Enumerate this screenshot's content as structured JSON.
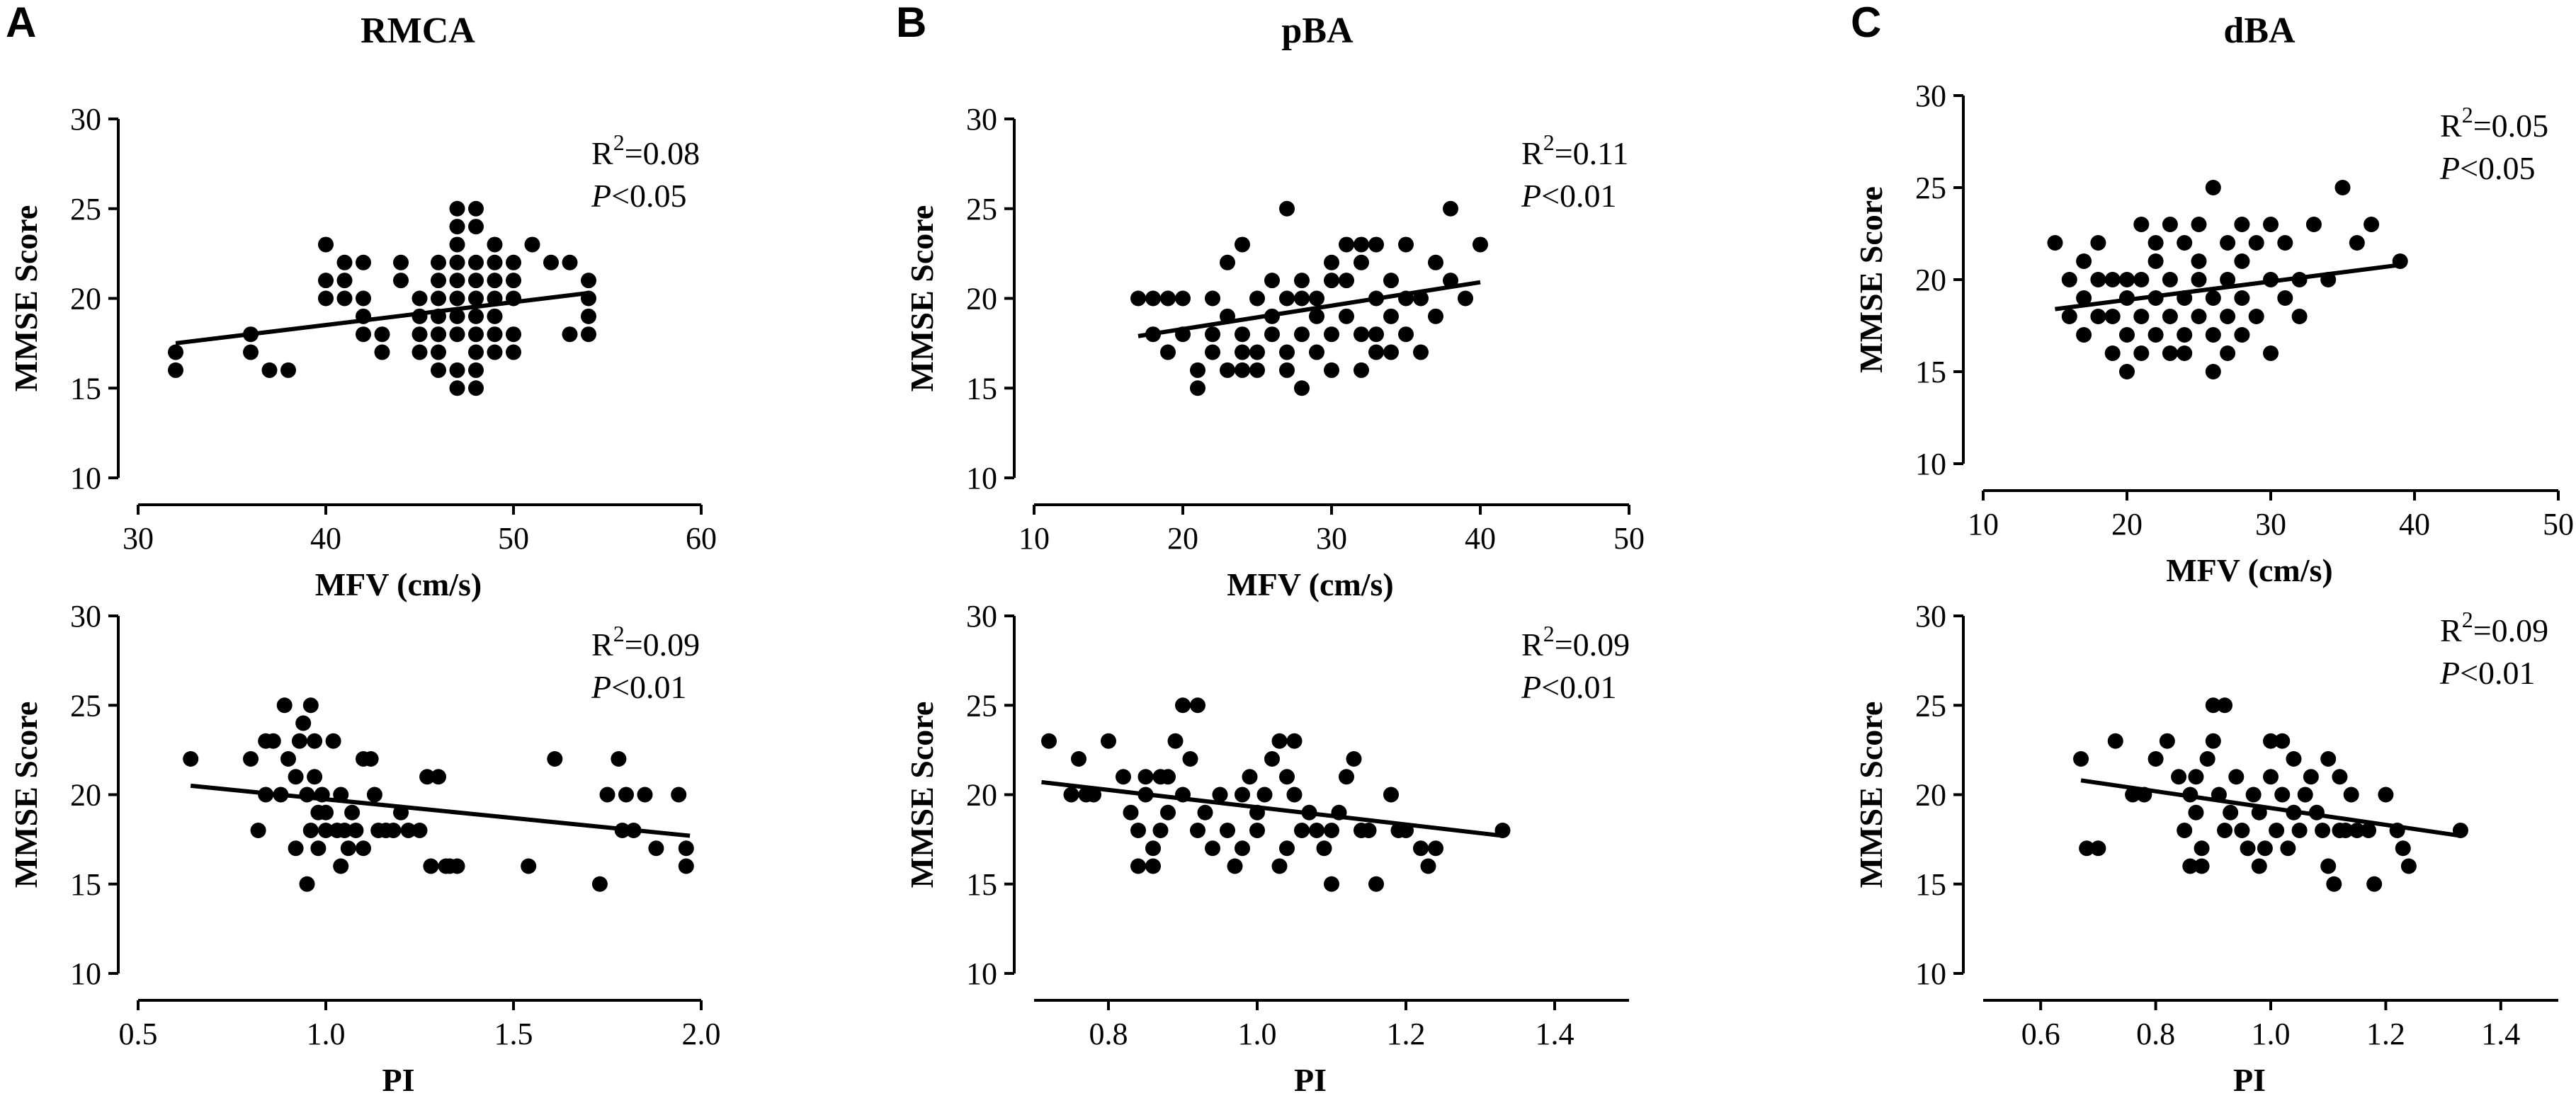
{
  "chart_data": [
    {
      "id": "A-MFV",
      "type": "scatter",
      "panel_letter": "A",
      "title": "RMCA",
      "xlabel": "MFV (cm/s)",
      "ylabel": "MMSE Score",
      "xlim": [
        30,
        60
      ],
      "ylim": [
        10,
        30
      ],
      "xticks": [
        30,
        40,
        50,
        60
      ],
      "xtick_labels": [
        "30",
        "40",
        "50",
        "60"
      ],
      "yticks": [
        10,
        15,
        20,
        25,
        30
      ],
      "ytick_labels": [
        "10",
        "15",
        "20",
        "25",
        "30"
      ],
      "annotation": {
        "r2_prefix": "R",
        "r2_sup": "2",
        "r2_value": "=0.08",
        "p_label": "P",
        "p_value": "<0.05"
      },
      "regression": {
        "x": [
          32,
          54
        ],
        "y": [
          17.5,
          20.3
        ]
      },
      "points": {
        "x": [
          32,
          32,
          36,
          36,
          37,
          38,
          40,
          40,
          40,
          41,
          41,
          41,
          42,
          42,
          42,
          42,
          43,
          43,
          44,
          44,
          45,
          45,
          45,
          45,
          46,
          46,
          46,
          46,
          46,
          46,
          46,
          46,
          47,
          47,
          47,
          47,
          47,
          47,
          47,
          47,
          47,
          47,
          48,
          48,
          48,
          48,
          48,
          48,
          48,
          48,
          48,
          48,
          49,
          49,
          49,
          49,
          49,
          49,
          49,
          50,
          50,
          50,
          50,
          50,
          51,
          52,
          53,
          53,
          54,
          54,
          54,
          54
        ],
        "y": [
          17,
          16,
          18,
          17,
          16,
          16,
          23,
          21,
          20,
          22,
          21,
          20,
          22,
          20,
          19,
          18,
          18,
          17,
          22,
          21,
          20,
          19,
          18,
          17,
          21,
          20,
          19,
          18,
          17,
          16,
          22,
          18,
          25,
          24,
          23,
          22,
          21,
          20,
          19,
          18,
          16,
          15,
          25,
          24,
          22,
          21,
          20,
          19,
          18,
          17,
          16,
          15,
          23,
          22,
          21,
          20,
          19,
          18,
          17,
          22,
          21,
          20,
          18,
          17,
          23,
          22,
          22,
          18,
          21,
          20,
          18,
          19
        ]
      }
    },
    {
      "id": "A-PI",
      "type": "scatter",
      "xlabel": "PI",
      "ylabel": "MMSE Score",
      "xlim": [
        0.5,
        2.0
      ],
      "ylim": [
        10,
        30
      ],
      "xticks": [
        0.5,
        1.0,
        1.5,
        2.0
      ],
      "xtick_labels": [
        "0.5",
        "1.0",
        "1.5",
        "2.0"
      ],
      "yticks": [
        10,
        15,
        20,
        25,
        30
      ],
      "ytick_labels": [
        "10",
        "15",
        "20",
        "25",
        "30"
      ],
      "annotation": {
        "r2_prefix": "R",
        "r2_sup": "2",
        "r2_value": "=0.09",
        "p_label": "P",
        "p_value": "<0.01"
      },
      "regression": {
        "x": [
          0.64,
          1.97
        ],
        "y": [
          20.5,
          17.7
        ]
      },
      "points": {
        "x": [
          0.64,
          0.8,
          0.82,
          0.84,
          0.84,
          0.86,
          0.88,
          0.89,
          0.9,
          0.92,
          0.92,
          0.93,
          0.94,
          0.95,
          0.95,
          0.96,
          0.96,
          0.97,
          0.97,
          0.98,
          0.98,
          0.99,
          1.0,
          1.0,
          1.02,
          1.03,
          1.04,
          1.04,
          1.05,
          1.06,
          1.07,
          1.08,
          1.1,
          1.1,
          1.12,
          1.13,
          1.14,
          1.16,
          1.18,
          1.2,
          1.22,
          1.25,
          1.27,
          1.28,
          1.3,
          1.32,
          1.33,
          1.35,
          1.54,
          1.61,
          1.73,
          1.75,
          1.78,
          1.79,
          1.8,
          1.82,
          1.85,
          1.88,
          1.94,
          1.96,
          1.96
        ],
        "y": [
          22,
          22,
          18,
          23,
          20,
          23,
          20,
          25,
          22,
          21,
          17,
          23,
          24,
          15,
          20,
          25,
          18,
          21,
          23,
          19,
          17,
          20,
          18,
          19,
          23,
          18,
          16,
          20,
          18,
          17,
          19,
          18,
          22,
          17,
          22,
          20,
          18,
          18,
          18,
          19,
          18,
          18,
          21,
          16,
          21,
          16,
          16,
          16,
          16,
          22,
          15,
          20,
          22,
          18,
          20,
          18,
          20,
          17,
          20,
          17,
          16
        ]
      }
    },
    {
      "id": "B-MFV",
      "type": "scatter",
      "panel_letter": "B",
      "title": "pBA",
      "xlabel": "MFV (cm/s)",
      "ylabel": "MMSE Score",
      "xlim": [
        10,
        50
      ],
      "ylim": [
        10,
        30
      ],
      "xticks": [
        10,
        20,
        30,
        40,
        50
      ],
      "xtick_labels": [
        "10",
        "20",
        "30",
        "40",
        "50"
      ],
      "yticks": [
        10,
        15,
        20,
        25,
        30
      ],
      "ytick_labels": [
        "10",
        "15",
        "20",
        "25",
        "30"
      ],
      "annotation": {
        "r2_prefix": "R",
        "r2_sup": "2",
        "r2_value": "=0.11",
        "p_label": "P",
        "p_value": "<0.01"
      },
      "regression": {
        "x": [
          17,
          40
        ],
        "y": [
          17.9,
          20.9
        ]
      },
      "points": {
        "x": [
          17,
          18,
          18,
          19,
          19,
          20,
          20,
          21,
          21,
          22,
          22,
          22,
          23,
          23,
          23,
          24,
          24,
          24,
          24,
          25,
          25,
          25,
          26,
          26,
          26,
          27,
          27,
          27,
          27,
          28,
          28,
          28,
          28,
          29,
          29,
          29,
          30,
          30,
          30,
          30,
          31,
          31,
          31,
          32,
          32,
          32,
          32,
          33,
          33,
          33,
          33,
          34,
          34,
          34,
          35,
          35,
          35,
          36,
          36,
          37,
          37,
          38,
          38,
          39,
          40
        ],
        "y": [
          20,
          18,
          20,
          20,
          17,
          18,
          20,
          15,
          16,
          18,
          17,
          20,
          19,
          16,
          22,
          17,
          16,
          23,
          18,
          17,
          20,
          16,
          21,
          18,
          19,
          20,
          25,
          17,
          16,
          15,
          18,
          20,
          21,
          17,
          19,
          20,
          18,
          16,
          21,
          22,
          19,
          23,
          21,
          18,
          23,
          22,
          16,
          17,
          20,
          23,
          18,
          17,
          19,
          21,
          18,
          23,
          20,
          17,
          20,
          19,
          22,
          21,
          25,
          20,
          23
        ]
      }
    },
    {
      "id": "B-PI",
      "type": "scatter",
      "xlabel": "PI",
      "ylabel": "MMSE Score",
      "xlim": [
        0.7,
        1.5
      ],
      "ylim": [
        10,
        30
      ],
      "xticks": [
        0.8,
        1.0,
        1.2,
        1.4
      ],
      "xtick_labels": [
        "0.8",
        "1.0",
        "1.2",
        "1.4"
      ],
      "yticks": [
        10,
        15,
        20,
        25,
        30
      ],
      "ytick_labels": [
        "10",
        "15",
        "20",
        "25",
        "30"
      ],
      "annotation": {
        "r2_prefix": "R",
        "r2_sup": "2",
        "r2_value": "=0.09",
        "p_label": "P",
        "p_value": "<0.01"
      },
      "regression": {
        "x": [
          0.71,
          1.33
        ],
        "y": [
          20.7,
          17.7
        ]
      },
      "points": {
        "x": [
          0.72,
          0.75,
          0.76,
          0.77,
          0.78,
          0.8,
          0.82,
          0.83,
          0.84,
          0.84,
          0.85,
          0.85,
          0.86,
          0.86,
          0.87,
          0.87,
          0.88,
          0.88,
          0.89,
          0.9,
          0.9,
          0.91,
          0.92,
          0.92,
          0.93,
          0.94,
          0.95,
          0.96,
          0.97,
          0.98,
          0.98,
          0.99,
          1.0,
          1.0,
          1.01,
          1.02,
          1.03,
          1.03,
          1.04,
          1.04,
          1.05,
          1.05,
          1.06,
          1.07,
          1.08,
          1.09,
          1.1,
          1.1,
          1.11,
          1.12,
          1.13,
          1.14,
          1.15,
          1.16,
          1.18,
          1.19,
          1.2,
          1.22,
          1.23,
          1.24,
          1.33
        ],
        "y": [
          23,
          20,
          22,
          20,
          20,
          23,
          21,
          19,
          18,
          16,
          21,
          20,
          17,
          16,
          21,
          18,
          19,
          21,
          23,
          25,
          20,
          22,
          18,
          25,
          19,
          17,
          20,
          18,
          16,
          17,
          20,
          21,
          18,
          19,
          20,
          22,
          23,
          16,
          17,
          21,
          20,
          23,
          18,
          19,
          18,
          17,
          15,
          18,
          19,
          21,
          22,
          18,
          18,
          15,
          20,
          18,
          18,
          17,
          16,
          17,
          18
        ]
      }
    },
    {
      "id": "C-MFV",
      "type": "scatter",
      "panel_letter": "C",
      "title": "dBA",
      "xlabel": "MFV (cm/s)",
      "ylabel": "MMSE Score",
      "xlim": [
        10,
        50
      ],
      "ylim": [
        10,
        30
      ],
      "xticks": [
        10,
        20,
        30,
        40,
        50
      ],
      "xtick_labels": [
        "10",
        "20",
        "30",
        "40",
        "50"
      ],
      "yticks": [
        10,
        15,
        20,
        25,
        30
      ],
      "ytick_labels": [
        "10",
        "15",
        "20",
        "25",
        "30"
      ],
      "annotation": {
        "r2_prefix": "R",
        "r2_sup": "2",
        "r2_value": "=0.05",
        "p_label": "P",
        "p_value": "<0.05"
      },
      "regression": {
        "x": [
          15,
          39
        ],
        "y": [
          18.4,
          20.8
        ]
      },
      "points": {
        "x": [
          15,
          16,
          16,
          17,
          17,
          17,
          18,
          18,
          18,
          19,
          19,
          19,
          20,
          20,
          20,
          20,
          21,
          21,
          21,
          21,
          22,
          22,
          22,
          22,
          23,
          23,
          23,
          23,
          24,
          24,
          24,
          24,
          25,
          25,
          25,
          25,
          26,
          26,
          26,
          26,
          27,
          27,
          27,
          27,
          28,
          28,
          28,
          28,
          29,
          29,
          30,
          30,
          30,
          31,
          31,
          32,
          32,
          33,
          34,
          35,
          36,
          37,
          39
        ],
        "y": [
          22,
          20,
          18,
          21,
          19,
          17,
          20,
          18,
          22,
          20,
          18,
          16,
          19,
          17,
          15,
          20,
          23,
          18,
          16,
          20,
          22,
          19,
          17,
          21,
          20,
          18,
          16,
          23,
          19,
          17,
          22,
          16,
          20,
          18,
          21,
          23,
          25,
          19,
          17,
          15,
          22,
          18,
          16,
          20,
          21,
          17,
          23,
          19,
          18,
          22,
          20,
          23,
          16,
          19,
          22,
          18,
          20,
          23,
          20,
          25,
          22,
          23,
          21
        ]
      }
    },
    {
      "id": "C-PI",
      "type": "scatter",
      "xlabel": "PI",
      "ylabel": "MMSE Score",
      "xlim": [
        0.5,
        1.5
      ],
      "ylim": [
        10,
        30
      ],
      "xticks": [
        0.6,
        0.8,
        1.0,
        1.2,
        1.4
      ],
      "xtick_labels": [
        "0.6",
        "0.8",
        "1.0",
        "1.2",
        "1.4"
      ],
      "yticks": [
        10,
        15,
        20,
        25,
        30
      ],
      "ytick_labels": [
        "10",
        "15",
        "20",
        "25",
        "30"
      ],
      "annotation": {
        "r2_prefix": "R",
        "r2_sup": "2",
        "r2_value": "=0.09",
        "p_label": "P",
        "p_value": "<0.01"
      },
      "regression": {
        "x": [
          0.67,
          1.33
        ],
        "y": [
          20.8,
          17.7
        ]
      },
      "points": {
        "x": [
          0.67,
          0.68,
          0.7,
          0.73,
          0.76,
          0.78,
          0.8,
          0.82,
          0.84,
          0.85,
          0.86,
          0.86,
          0.87,
          0.87,
          0.88,
          0.88,
          0.89,
          0.9,
          0.9,
          0.91,
          0.92,
          0.92,
          0.93,
          0.94,
          0.95,
          0.96,
          0.97,
          0.98,
          0.98,
          0.99,
          1.0,
          1.0,
          1.01,
          1.02,
          1.02,
          1.03,
          1.04,
          1.04,
          1.05,
          1.06,
          1.07,
          1.08,
          1.09,
          1.1,
          1.1,
          1.11,
          1.12,
          1.12,
          1.13,
          1.14,
          1.15,
          1.17,
          1.18,
          1.2,
          1.22,
          1.23,
          1.24,
          1.33
        ],
        "y": [
          22,
          17,
          17,
          23,
          20,
          20,
          22,
          23,
          21,
          18,
          16,
          20,
          19,
          21,
          17,
          16,
          22,
          23,
          25,
          20,
          25,
          18,
          19,
          21,
          18,
          17,
          20,
          16,
          19,
          17,
          23,
          21,
          18,
          20,
          23,
          17,
          19,
          22,
          18,
          20,
          21,
          19,
          18,
          22,
          16,
          15,
          18,
          21,
          18,
          20,
          18,
          18,
          15,
          20,
          18,
          17,
          16,
          18
        ]
      }
    }
  ]
}
